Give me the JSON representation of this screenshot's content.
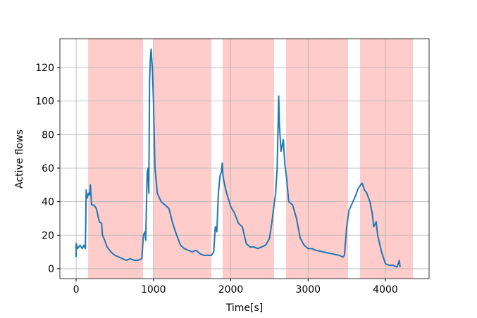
{
  "chart_data": {
    "type": "line",
    "xlabel": "Time[s]",
    "ylabel": "Active flows",
    "x": [
      0,
      0,
      20,
      50,
      80,
      100,
      110,
      120,
      130,
      140,
      160,
      175,
      185,
      200,
      230,
      260,
      300,
      330,
      340,
      370,
      400,
      450,
      500,
      550,
      600,
      650,
      700,
      750,
      800,
      850,
      870,
      890,
      900,
      910,
      920,
      930,
      940,
      950,
      960,
      970,
      985,
      1000,
      1020,
      1050,
      1100,
      1150,
      1200,
      1250,
      1300,
      1350,
      1400,
      1450,
      1500,
      1550,
      1600,
      1650,
      1700,
      1750,
      1780,
      1800,
      1820,
      1840,
      1860,
      1880,
      1890,
      1900,
      1930,
      1960,
      2000,
      2050,
      2100,
      2150,
      2200,
      2250,
      2300,
      2350,
      2400,
      2450,
      2500,
      2530,
      2560,
      2580,
      2600,
      2620,
      2630,
      2650,
      2680,
      2700,
      2720,
      2750,
      2800,
      2850,
      2900,
      2950,
      3000,
      3050,
      3100,
      3200,
      3300,
      3400,
      3450,
      3470,
      3500,
      3530,
      3560,
      3600,
      3650,
      3680,
      3700,
      3730,
      3760,
      3800,
      3830,
      3850,
      3880,
      3900,
      3950,
      4000,
      4050,
      4100,
      4150,
      4180,
      4190
    ],
    "values": [
      7,
      15,
      12,
      14,
      12,
      14,
      13,
      12,
      47,
      42,
      45,
      44,
      50,
      38,
      38,
      36,
      28,
      27,
      20,
      17,
      13,
      10,
      8,
      7,
      6,
      5,
      6,
      5,
      5,
      6,
      20,
      22,
      17,
      40,
      58,
      60,
      45,
      112,
      125,
      131,
      120,
      100,
      60,
      45,
      40,
      38,
      36,
      27,
      20,
      14,
      12,
      11,
      10,
      11,
      9,
      8,
      8,
      8,
      10,
      25,
      22,
      45,
      55,
      58,
      63,
      55,
      48,
      43,
      37,
      33,
      27,
      25,
      15,
      13,
      13,
      12,
      13,
      14,
      18,
      27,
      38,
      45,
      60,
      103,
      85,
      70,
      77,
      62,
      55,
      40,
      38,
      30,
      18,
      14,
      12,
      12,
      11,
      10,
      9,
      8,
      7,
      8,
      25,
      35,
      38,
      42,
      48,
      50,
      51,
      47,
      45,
      40,
      33,
      25,
      28,
      20,
      10,
      3,
      2,
      2,
      1,
      5,
      1
    ],
    "color": "#1f77b4",
    "shaded_spans": [
      [
        155,
        866
      ],
      [
        1002,
        1749
      ],
      [
        1895,
        2560
      ],
      [
        2715,
        3517
      ],
      [
        3672,
        4355
      ]
    ],
    "shade_color": "#ffcccc",
    "xlim": [
      -210,
      4565
    ],
    "ylim": [
      -5.9,
      137.2
    ],
    "xticks": [
      0,
      1000,
      2000,
      3000,
      4000
    ],
    "yticks": [
      0,
      20,
      40,
      60,
      80,
      100,
      120
    ],
    "grid": true
  }
}
